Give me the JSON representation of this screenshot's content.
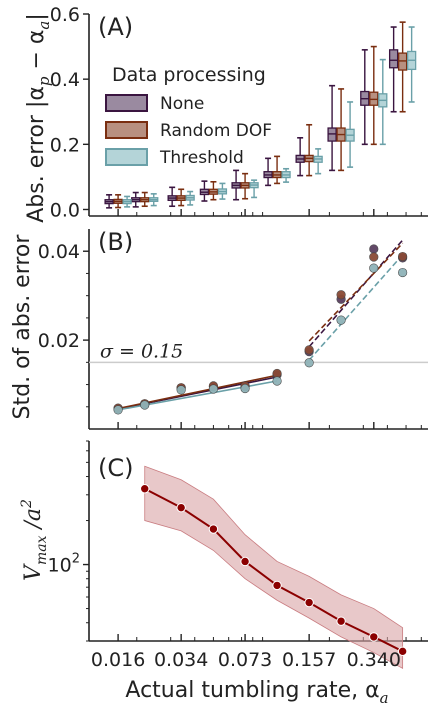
{
  "figure": {
    "x_axis_label": "Actual tumbling rate, α",
    "x_axis_sub": "a",
    "x_tick_labels": [
      "0.016",
      "0.034",
      "0.073",
      "0.157",
      "0.340"
    ]
  },
  "chart_data": [
    {
      "type": "box",
      "panel_tag": "(A)",
      "ylabel_text": "Abs. error |α",
      "ylabel_sub1": "p",
      "ylabel_mid": " − α",
      "ylabel_sub2": "a",
      "ylabel_end": "|",
      "ylim": [
        -0.02,
        0.6
      ],
      "y_ticks": [
        "0.0",
        "0.2",
        "0.4",
        "0.6"
      ],
      "y_tick_values": [
        0.0,
        0.2,
        0.4,
        0.6
      ],
      "x_scale": "log",
      "legend": {
        "title": "Data processing",
        "placement": "upper-left",
        "entries": [
          "None",
          "Random DOF",
          "Threshold"
        ]
      },
      "series_colors": [
        "#9a8aa0",
        "#b89080",
        "#b4d4d8"
      ],
      "series_edge_colors": [
        "#3a1540",
        "#7a2e10",
        "#6aa0a8"
      ],
      "x": [
        0.016,
        0.022,
        0.034,
        0.05,
        0.073,
        0.107,
        0.157,
        0.23,
        0.34,
        0.48
      ],
      "series": [
        {
          "name": "None",
          "q1": [
            0.018,
            0.024,
            0.028,
            0.046,
            0.066,
            0.098,
            0.145,
            0.21,
            0.32,
            0.435
          ],
          "median": [
            0.024,
            0.03,
            0.035,
            0.053,
            0.074,
            0.106,
            0.155,
            0.232,
            0.34,
            0.458
          ],
          "q3": [
            0.03,
            0.036,
            0.042,
            0.062,
            0.082,
            0.116,
            0.166,
            0.25,
            0.362,
            0.49
          ],
          "whisker_low": [
            0.005,
            0.008,
            0.01,
            0.026,
            0.03,
            0.074,
            0.104,
            0.12,
            0.2,
            0.3
          ],
          "whisker_high": [
            0.045,
            0.052,
            0.068,
            0.087,
            0.12,
            0.157,
            0.22,
            0.38,
            0.49,
            0.56
          ]
        },
        {
          "name": "Random DOF",
          "q1": [
            0.019,
            0.024,
            0.028,
            0.047,
            0.066,
            0.098,
            0.147,
            0.21,
            0.32,
            0.428
          ],
          "median": [
            0.025,
            0.03,
            0.035,
            0.054,
            0.074,
            0.106,
            0.157,
            0.23,
            0.338,
            0.456
          ],
          "q3": [
            0.031,
            0.036,
            0.042,
            0.062,
            0.082,
            0.116,
            0.166,
            0.25,
            0.36,
            0.48
          ],
          "whisker_low": [
            0.006,
            0.01,
            0.012,
            0.03,
            0.033,
            0.08,
            0.104,
            0.12,
            0.2,
            0.3
          ],
          "whisker_high": [
            0.045,
            0.052,
            0.062,
            0.085,
            0.11,
            0.163,
            0.26,
            0.37,
            0.5,
            0.575
          ]
        },
        {
          "name": "Threshold",
          "q1": [
            0.018,
            0.025,
            0.029,
            0.048,
            0.067,
            0.098,
            0.145,
            0.21,
            0.315,
            0.43
          ],
          "median": [
            0.024,
            0.03,
            0.036,
            0.055,
            0.075,
            0.106,
            0.155,
            0.228,
            0.335,
            0.458
          ],
          "q3": [
            0.03,
            0.036,
            0.043,
            0.063,
            0.082,
            0.116,
            0.163,
            0.246,
            0.355,
            0.485
          ],
          "whisker_low": [
            0.008,
            0.012,
            0.014,
            0.032,
            0.037,
            0.084,
            0.11,
            0.13,
            0.2,
            0.33
          ],
          "whisker_high": [
            0.04,
            0.048,
            0.055,
            0.08,
            0.09,
            0.125,
            0.186,
            0.33,
            0.46,
            0.56
          ]
        }
      ]
    },
    {
      "type": "scatter",
      "panel_tag": "(B)",
      "ylabel": "Std. of abs. error",
      "ylim": [
        0.0,
        0.045
      ],
      "y_ticks": [
        "0.02",
        "0.04"
      ],
      "y_tick_values": [
        0.02,
        0.04
      ],
      "x_scale": "log",
      "annotation": "σ = 0.15",
      "threshold_line_y": 0.015,
      "series_colors": [
        "#5a4060",
        "#8a4a35",
        "#8fb3b8"
      ],
      "x": [
        0.016,
        0.022,
        0.034,
        0.05,
        0.073,
        0.107,
        0.157,
        0.23,
        0.34,
        0.48
      ],
      "series": [
        {
          "name": "None",
          "values": [
            0.0046,
            0.0056,
            0.0092,
            0.0095,
            0.0095,
            0.0122,
            0.0174,
            0.0292,
            0.0405,
            0.0385
          ]
        },
        {
          "name": "Random DOF",
          "values": [
            0.0047,
            0.0057,
            0.0093,
            0.0097,
            0.0097,
            0.0125,
            0.0178,
            0.0302,
            0.0387,
            0.0388
          ]
        },
        {
          "name": "Threshold",
          "values": [
            0.0043,
            0.0054,
            0.0088,
            0.009,
            0.0091,
            0.0108,
            0.0149,
            0.0245,
            0.0362,
            0.0352
          ]
        }
      ],
      "fits": [
        {
          "name": "None",
          "x_range": [
            0.016,
            0.107
          ],
          "y_range": [
            0.0045,
            0.0117
          ],
          "style": "solid"
        },
        {
          "name": "Random DOF",
          "x_range": [
            0.016,
            0.107
          ],
          "y_range": [
            0.0046,
            0.0121
          ],
          "style": "solid"
        },
        {
          "name": "Threshold",
          "x_range": [
            0.016,
            0.107
          ],
          "y_range": [
            0.0043,
            0.0108
          ],
          "style": "solid"
        },
        {
          "name": "None",
          "x_range": [
            0.157,
            0.48
          ],
          "y_range": [
            0.0185,
            0.0425
          ],
          "style": "dashed"
        },
        {
          "name": "Random DOF",
          "x_range": [
            0.157,
            0.48
          ],
          "y_range": [
            0.0198,
            0.0418
          ],
          "style": "dashed"
        },
        {
          "name": "Threshold",
          "x_range": [
            0.157,
            0.48
          ],
          "y_range": [
            0.0155,
            0.0392
          ],
          "style": "dashed"
        }
      ]
    },
    {
      "type": "line",
      "panel_tag": "(C)",
      "ylabel_text": "V",
      "ylabel_sub": "max",
      "ylabel_end": " /a",
      "ylabel_sup": "2",
      "y_scale": "log",
      "ylim": [
        30,
        700
      ],
      "y_ticks": [
        "10"
      ],
      "y_tick_sup": "2",
      "y_tick_values": [
        100
      ],
      "x_scale": "log",
      "line_color": "#8b0000",
      "band_color": "#d9a3a5",
      "x": [
        0.022,
        0.034,
        0.05,
        0.073,
        0.107,
        0.157,
        0.23,
        0.34,
        0.48
      ],
      "series": [
        {
          "name": "",
          "values": [
            330,
            245,
            175,
            105,
            72,
            55,
            41,
            32,
            25.5
          ],
          "band_low": [
            200,
            170,
            125,
            80,
            57,
            43,
            32,
            25,
            19.5
          ],
          "band_high": [
            470,
            380,
            280,
            160,
            105,
            83,
            62,
            50,
            37
          ]
        }
      ]
    }
  ]
}
